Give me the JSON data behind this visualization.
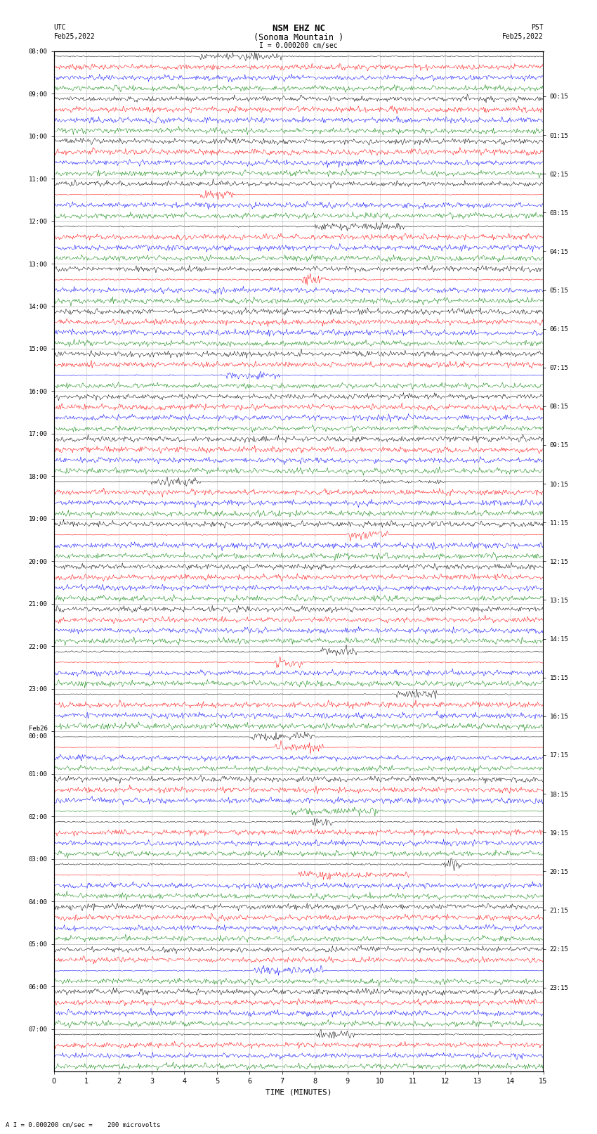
{
  "title_line1": "NSM EHZ NC",
  "title_line2": "(Sonoma Mountain )",
  "title_line3": "I = 0.000200 cm/sec",
  "label_utc": "UTC",
  "label_date_left": "Feb25,2022",
  "label_pst": "PST",
  "label_date_right": "Feb25,2022",
  "xlabel": "TIME (MINUTES)",
  "footer": "A I = 0.000200 cm/sec =    200 microvolts",
  "utc_times": [
    "08:00",
    "09:00",
    "10:00",
    "11:00",
    "12:00",
    "13:00",
    "14:00",
    "15:00",
    "16:00",
    "17:00",
    "18:00",
    "19:00",
    "20:00",
    "21:00",
    "22:00",
    "23:00",
    "Feb26\n00:00",
    "01:00",
    "02:00",
    "03:00",
    "04:00",
    "05:00",
    "06:00",
    "07:00"
  ],
  "pst_times": [
    "00:15",
    "01:15",
    "02:15",
    "03:15",
    "04:15",
    "05:15",
    "06:15",
    "07:15",
    "08:15",
    "09:15",
    "10:15",
    "11:15",
    "12:15",
    "13:15",
    "14:15",
    "15:15",
    "16:15",
    "17:15",
    "18:15",
    "19:15",
    "20:15",
    "21:15",
    "22:15",
    "23:15"
  ],
  "n_hours": 24,
  "traces_per_hour": 4,
  "trace_colors": [
    "black",
    "red",
    "blue",
    "green"
  ],
  "minutes": 15,
  "samples_per_minute": 40,
  "noise_amp": [
    0.012,
    0.018,
    0.022,
    0.01
  ],
  "background_color": "white",
  "grid_color": "#888888",
  "figsize": [
    8.5,
    16.13
  ]
}
